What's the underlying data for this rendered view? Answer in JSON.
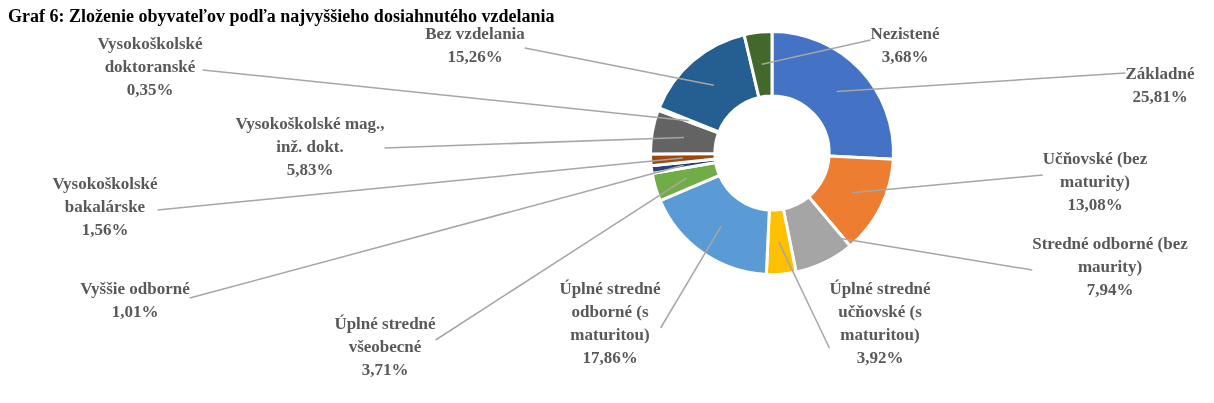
{
  "chart_data": {
    "type": "donut",
    "title": "Graf 6: Zloženie obyvateľov podľa najvyššieho dosiahnutého vzdelania",
    "categories": [
      "Základné",
      "Učňovské (bez maturity)",
      "Stredné odborné (bez maurity)",
      "Úplné stredné učňovské (s maturitou)",
      "Úplné stredné odborné (s maturitou)",
      "Úplné stredné všeobecné",
      "Vyššie odborné",
      "Vysokoškolské bakalárske",
      "Vysokoškolské mag., inž. dokt.",
      "Vysokoškolské doktoranské",
      "Bez vzdelania",
      "Nezistené"
    ],
    "values": [
      25.81,
      13.08,
      7.94,
      3.92,
      17.86,
      3.71,
      1.01,
      1.56,
      5.83,
      0.35,
      15.26,
      3.68
    ],
    "value_labels": [
      "25,81%",
      "13,08%",
      "7,94%",
      "3,92%",
      "17,86%",
      "3,71%",
      "1,01%",
      "1,56%",
      "5,83%",
      "0,35%",
      "15,26%",
      "3,68%"
    ],
    "colors": [
      "#4472c4",
      "#ed7d31",
      "#a5a5a5",
      "#ffc000",
      "#5b9bd5",
      "#70ad47",
      "#264478",
      "#9e480e",
      "#636363",
      "#997300",
      "#255e91",
      "#43682b"
    ]
  }
}
